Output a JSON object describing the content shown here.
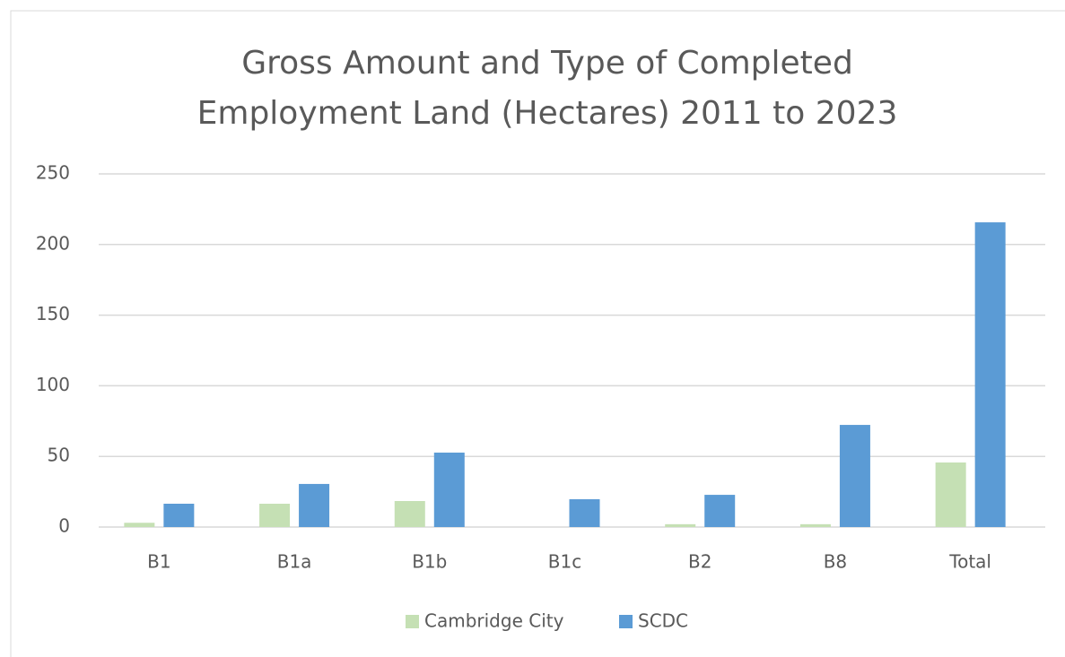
{
  "chart_data": {
    "type": "bar",
    "title": [
      "Gross Amount and Type of Completed",
      "Employment Land (Hectares) 2011 to 2023"
    ],
    "categories": [
      "B1",
      "B1a",
      "B1b",
      "B1c",
      "B2",
      "B8",
      "Total"
    ],
    "series": [
      {
        "name": "Cambridge City",
        "color": "#c5e0b4",
        "values": [
          3,
          16.5,
          18.4,
          0,
          2,
          2,
          45.7
        ]
      },
      {
        "name": "SCDC",
        "color": "#5b9bd5",
        "values": [
          16.5,
          30.5,
          52.7,
          19.7,
          22.8,
          72.3,
          215.7
        ]
      }
    ],
    "ylim": [
      0,
      250
    ],
    "yticks": [
      0,
      50,
      100,
      150,
      200,
      250
    ],
    "grid": true,
    "legend": "bottom"
  }
}
